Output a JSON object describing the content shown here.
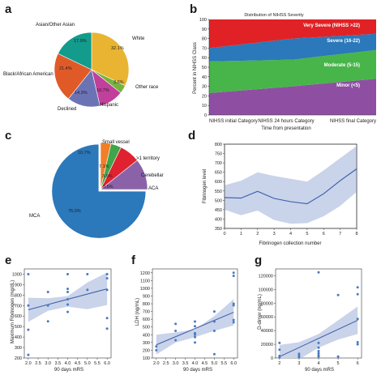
{
  "panels": [
    "a",
    "b",
    "c",
    "d",
    "e",
    "f",
    "g"
  ],
  "colors": {
    "white": "#E8B431",
    "other_race": "#74B33F",
    "hispanic": "#C0409B",
    "declined": "#6C73B5",
    "black": "#E05A28",
    "asian": "#139B8C",
    "mca": "#2B78BA",
    "aca": "#F07F2A",
    "cerebellar": "#3FA548",
    "gt1": "#E02230",
    "small_vessel": "#8B62A8",
    "band": "#C9D3EA",
    "line": "#3B5CA6",
    "points": "#4A7AC2",
    "severity_very": "#E02226",
    "severity_severe": "#2B78BA",
    "severity_moderate": "#47B549",
    "severity_minor": "#8E4FA3"
  },
  "chart_data": [
    {
      "panel": "a",
      "type": "pie",
      "labels": [
        "White",
        "Other race",
        "Hispanic",
        "Declined",
        "Black/African American",
        "Asian/Other Asian"
      ],
      "values": [
        32.1,
        3.6,
        10.7,
        14.3,
        21.4,
        17.9
      ],
      "value_labels": [
        "32.1%",
        "3.6%",
        "10.7%",
        "14.3%",
        "21.4%",
        "17.9%"
      ],
      "color_keys": [
        "white",
        "other_race",
        "hispanic",
        "declined",
        "black",
        "asian"
      ]
    },
    {
      "panel": "b",
      "type": "area",
      "title": "Distribution of NIHSS Severity",
      "categories": [
        "NIHSS initial Category",
        "NIHSS 24 hours Category",
        "NIHSS final Category"
      ],
      "xlabel": "Time from presentation",
      "ylabel": "Percent in NIHSS Class",
      "ylim": [
        0,
        100
      ],
      "yticks": [
        "0",
        "10",
        "20",
        "30",
        "40",
        "50",
        "60",
        "70",
        "80",
        "90",
        "100"
      ],
      "series": [
        {
          "name": "Minor (<5)",
          "values": [
            23,
            30,
            38
          ],
          "color_key": "severity_minor"
        },
        {
          "name": "Moderate (5-15)",
          "values": [
            33,
            28,
            30
          ],
          "color_key": "severity_moderate"
        },
        {
          "name": "Severe (16-22)",
          "values": [
            14,
            22,
            17
          ],
          "color_key": "severity_severe"
        },
        {
          "name": "Very Severe (NIHSS >22)",
          "values": [
            30,
            20,
            15
          ],
          "color_key": "severity_very"
        }
      ]
    },
    {
      "panel": "c",
      "type": "pie",
      "labels": [
        "MCA",
        "ACA",
        "Cerebellar",
        ">1 territory",
        "Small vessel"
      ],
      "values": [
        75.0,
        3.6,
        3.6,
        7.1,
        10.7
      ],
      "value_labels": [
        "75.0%",
        "3.6%",
        "3.6%",
        "7.1%",
        "10.7%"
      ],
      "color_keys": [
        "mca",
        "aca",
        "cerebellar",
        "gt1",
        "small_vessel"
      ]
    },
    {
      "panel": "d",
      "type": "line",
      "xlabel": "Fibrinogen collection number",
      "ylabel": "Fibrinogen level",
      "x": [
        0,
        1,
        2,
        3,
        4,
        5,
        6,
        7,
        8
      ],
      "y": [
        515,
        512,
        548,
        510,
        493,
        482,
        535,
        605,
        668
      ],
      "ci_low": [
        450,
        420,
        445,
        395,
        375,
        378,
        415,
        470,
        545
      ],
      "ci_high": [
        580,
        605,
        650,
        630,
        615,
        600,
        660,
        725,
        790
      ],
      "xlim": [
        0,
        8
      ],
      "ylim": [
        350,
        800
      ],
      "xticks": [
        "0",
        "1",
        "2",
        "3",
        "4",
        "5",
        "6",
        "7",
        "8"
      ],
      "yticks": [
        "350",
        "400",
        "450",
        "500",
        "550",
        "600",
        "650",
        "700",
        "750",
        "800"
      ]
    },
    {
      "panel": "e",
      "type": "scatter",
      "xlabel": "90 days mRS",
      "ylabel": "Maximum Fibrinogen (mg/dL)",
      "xlim": [
        1.8,
        6.2
      ],
      "ylim": [
        200,
        1050
      ],
      "xticks": [
        "2.0",
        "2.5",
        "3.0",
        "3.5",
        "4.0",
        "4.5",
        "5.0",
        "5.5",
        "6.0"
      ],
      "yticks": [
        "200",
        "300",
        "400",
        "500",
        "600",
        "700",
        "800",
        "900",
        "1000"
      ],
      "points": [
        [
          2.0,
          1000
        ],
        [
          2.0,
          700
        ],
        [
          2.0,
          470
        ],
        [
          2.0,
          230
        ],
        [
          3.0,
          830
        ],
        [
          3.0,
          700
        ],
        [
          3.0,
          550
        ],
        [
          4.0,
          1000
        ],
        [
          4.0,
          860
        ],
        [
          4.0,
          830
        ],
        [
          4.0,
          760
        ],
        [
          4.0,
          710
        ],
        [
          4.0,
          640
        ],
        [
          5.0,
          1000
        ],
        [
          5.0,
          850
        ],
        [
          6.0,
          1000
        ],
        [
          6.0,
          960
        ],
        [
          6.0,
          850
        ],
        [
          6.0,
          580
        ],
        [
          6.0,
          480
        ]
      ],
      "fit": {
        "x": [
          2.0,
          6.0
        ],
        "y": [
          660,
          860
        ]
      },
      "band_low": [
        545,
        650,
        690,
        665,
        705
      ],
      "band_high": [
        775,
        770,
        790,
        920,
        1015
      ]
    },
    {
      "panel": "f",
      "type": "scatter",
      "xlabel": "90 days mRS",
      "ylabel": "LDH (ng/mL)",
      "xlim": [
        1.8,
        6.2
      ],
      "ylim": [
        100,
        1250
      ],
      "xticks": [
        "2.0",
        "2.5",
        "3.0",
        "3.5",
        "4.0",
        "4.5",
        "5.0",
        "5.5",
        "6.0"
      ],
      "yticks": [
        "100",
        "200",
        "300",
        "400",
        "500",
        "600",
        "700",
        "800",
        "900",
        "1000",
        "1100",
        "1200"
      ],
      "points": [
        [
          2.0,
          250
        ],
        [
          2.0,
          200
        ],
        [
          3.0,
          540
        ],
        [
          3.0,
          450
        ],
        [
          3.0,
          330
        ],
        [
          4.0,
          570
        ],
        [
          4.0,
          510
        ],
        [
          4.0,
          420
        ],
        [
          4.0,
          400
        ],
        [
          4.0,
          370
        ],
        [
          4.0,
          300
        ],
        [
          5.0,
          700
        ],
        [
          5.0,
          570
        ],
        [
          5.0,
          450
        ],
        [
          5.0,
          150
        ],
        [
          6.0,
          1200
        ],
        [
          6.0,
          1160
        ],
        [
          6.0,
          800
        ],
        [
          6.0,
          780
        ],
        [
          6.0,
          590
        ],
        [
          6.0,
          560
        ]
      ],
      "fit": {
        "x": [
          2.0,
          6.0
        ],
        "y": [
          270,
          690
        ]
      },
      "band_low": [
        145,
        300,
        370,
        450,
        520
      ],
      "band_high": [
        400,
        430,
        470,
        640,
        860
      ]
    },
    {
      "panel": "g",
      "type": "scatter",
      "xlabel": "90 days mRS",
      "ylabel": "D-dimer (ng/mL)",
      "xlim": [
        1.8,
        6.2
      ],
      "ylim": [
        0,
        130000
      ],
      "xticks": [
        "2",
        "3",
        "4",
        "5",
        "6"
      ],
      "yticks": [
        "0",
        "20000",
        "40000",
        "60000",
        "80000",
        "100000",
        "120000"
      ],
      "points": [
        [
          2.0,
          22000
        ],
        [
          2.0,
          12000
        ],
        [
          2.0,
          3000
        ],
        [
          2.0,
          1000
        ],
        [
          3.0,
          6000
        ],
        [
          3.0,
          3000
        ],
        [
          3.0,
          1000
        ],
        [
          4.0,
          125000
        ],
        [
          4.0,
          22000
        ],
        [
          4.0,
          15000
        ],
        [
          4.0,
          10000
        ],
        [
          4.0,
          7000
        ],
        [
          4.0,
          4000
        ],
        [
          4.0,
          2000
        ],
        [
          5.0,
          92000
        ],
        [
          5.0,
          2000
        ],
        [
          6.0,
          103000
        ],
        [
          6.0,
          93000
        ],
        [
          6.0,
          57000
        ],
        [
          6.0,
          23000
        ],
        [
          6.0,
          20000
        ]
      ],
      "fit": {
        "x": [
          2.0,
          6.0
        ],
        "y": [
          2000,
          55000
        ]
      },
      "band_low": [
        -15000,
        -2000,
        15000,
        27000,
        35000
      ],
      "band_high": [
        19000,
        23000,
        35000,
        55000,
        75000
      ]
    }
  ]
}
